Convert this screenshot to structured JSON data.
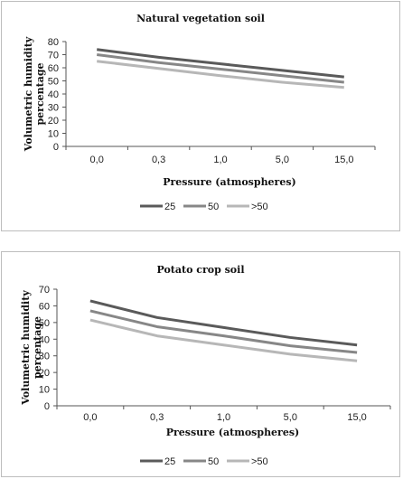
{
  "chart_data": [
    {
      "type": "line",
      "title": "Natural vegetation soil",
      "xlabel": "Pressure (atmospheres)",
      "ylabel": "Volumetric humidity percentage",
      "categories": [
        "0,0",
        "0,3",
        "1,0",
        "5,0",
        "15,0"
      ],
      "yticks": [
        "0",
        "10",
        "20",
        "30",
        "40",
        "50",
        "60",
        "70",
        "80"
      ],
      "ylim": [
        0,
        80
      ],
      "legend_position": "bottom",
      "grid": false,
      "series": [
        {
          "name": "25",
          "color": "#5a5a5a",
          "values": [
            74,
            68,
            63,
            58,
            53
          ]
        },
        {
          "name": "50",
          "color": "#878787",
          "values": [
            70,
            64,
            59,
            54,
            49
          ]
        },
        {
          "name": ">50",
          "color": "#b7b7b7",
          "values": [
            65,
            59.5,
            54,
            49,
            45
          ]
        }
      ]
    },
    {
      "type": "line",
      "title": "Potato crop soil",
      "xlabel": "Pressure (atmospheres)",
      "ylabel": "Volumetric humidity percentage",
      "categories": [
        "0,0",
        "0,3",
        "1,0",
        "5,0",
        "15,0"
      ],
      "yticks": [
        "0",
        "10",
        "20",
        "30",
        "40",
        "50",
        "60",
        "70"
      ],
      "ylim": [
        0,
        70
      ],
      "legend_position": "bottom",
      "grid": false,
      "series": [
        {
          "name": "25",
          "color": "#5a5a5a",
          "values": [
            63,
            53,
            47,
            41,
            36.5
          ]
        },
        {
          "name": "50",
          "color": "#878787",
          "values": [
            57,
            47.5,
            42,
            36,
            32
          ]
        },
        {
          "name": ">50",
          "color": "#b7b7b7",
          "values": [
            51.5,
            42,
            36.5,
            31,
            27
          ]
        }
      ]
    }
  ]
}
